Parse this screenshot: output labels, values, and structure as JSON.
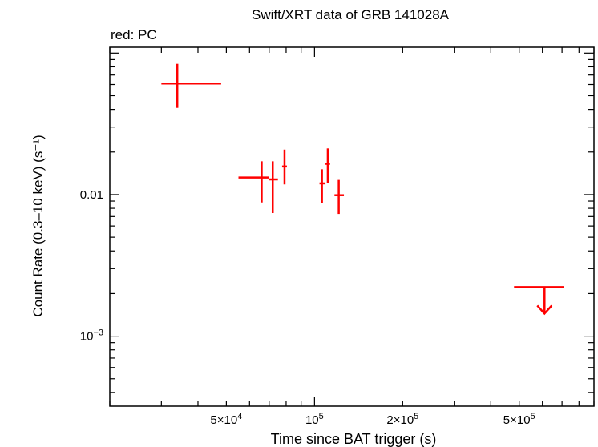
{
  "chart_data": {
    "type": "scatter",
    "title": "Swift/XRT data of GRB 141028A",
    "subtitle": "red: PC",
    "xlabel": "Time since BAT trigger (s)",
    "ylabel": "Count Rate (0.3–10 keV) (s⁻¹)",
    "xscale": "log",
    "yscale": "log",
    "xlim": [
      20000,
      900000
    ],
    "ylim": [
      0.00032,
      0.11
    ],
    "grid": false,
    "x_tick_labels": [
      {
        "value": 50000,
        "mant": "5×10",
        "exp": "4"
      },
      {
        "value": 100000,
        "mant": "10",
        "exp": "5"
      },
      {
        "value": 200000,
        "mant": "2×10",
        "exp": "5"
      },
      {
        "value": 500000,
        "mant": "5×10",
        "exp": "5"
      }
    ],
    "y_tick_labels": [
      {
        "value": 0.01,
        "mant": "0.01",
        "exp": ""
      },
      {
        "value": 0.001,
        "mant": "10",
        "exp": "−3"
      }
    ],
    "series": [
      {
        "color": "#ff0000",
        "points": [
          {
            "x": 34000,
            "xlo": 30000,
            "xhi": 48000,
            "y": 0.061,
            "ylo": 0.041,
            "yhi": 0.084
          },
          {
            "x": 66000,
            "xlo": 55000,
            "xhi": 70000,
            "y": 0.0132,
            "ylo": 0.0088,
            "yhi": 0.0172
          },
          {
            "x": 72000,
            "xlo": 70000,
            "xhi": 75000,
            "y": 0.0128,
            "ylo": 0.0074,
            "yhi": 0.0172
          },
          {
            "x": 79000,
            "xlo": 77500,
            "xhi": 80500,
            "y": 0.0158,
            "ylo": 0.0118,
            "yhi": 0.0208
          },
          {
            "x": 106000,
            "xlo": 104000,
            "xhi": 109000,
            "y": 0.012,
            "ylo": 0.0087,
            "yhi": 0.0151
          },
          {
            "x": 111000,
            "xlo": 109000,
            "xhi": 113000,
            "y": 0.0165,
            "ylo": 0.012,
            "yhi": 0.0212
          },
          {
            "x": 121000,
            "xlo": 117000,
            "xhi": 126000,
            "y": 0.0099,
            "ylo": 0.0073,
            "yhi": 0.0127
          }
        ],
        "upper_limits": [
          {
            "x": 610000,
            "xlo": 480000,
            "xhi": 710000,
            "y": 0.00222
          }
        ]
      }
    ]
  }
}
